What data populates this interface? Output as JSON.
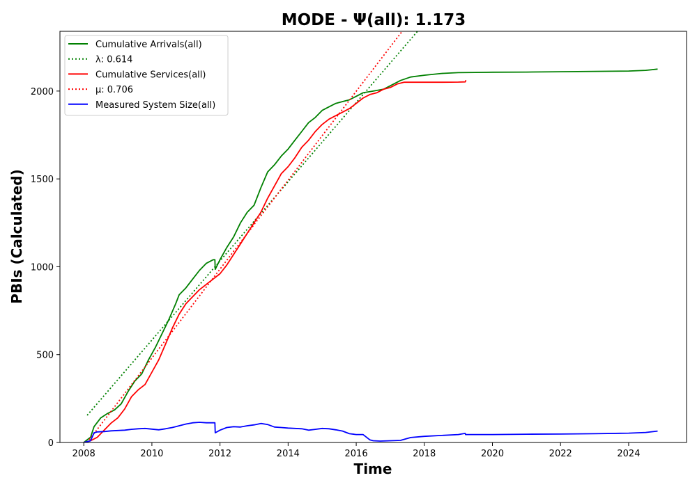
{
  "chart_data": {
    "type": "line",
    "title": "MODE -  Ψ(all): 1.173",
    "xlabel": "Time",
    "ylabel": "PBIs (Calculated)",
    "xlim": [
      2007.3,
      2025.7
    ],
    "ylim": [
      0,
      2340
    ],
    "x_ticks": [
      2008,
      2010,
      2012,
      2014,
      2016,
      2018,
      2020,
      2022,
      2024
    ],
    "x_tick_labels": [
      "2008",
      "2010",
      "2012",
      "2014",
      "2016",
      "2018",
      "2020",
      "2022",
      "2024"
    ],
    "y_ticks": [
      0,
      500,
      1000,
      1500,
      2000
    ],
    "y_tick_labels": [
      "0",
      "500",
      "1000",
      "1500",
      "2000"
    ],
    "grid": false,
    "legend_position": "top-left",
    "series": [
      {
        "name": "Cumulative Arrivals(all)",
        "color": "#008000",
        "style": "solid",
        "x": [
          2008.0,
          2008.2,
          2008.3,
          2008.5,
          2008.7,
          2008.9,
          2009.1,
          2009.3,
          2009.5,
          2009.7,
          2009.9,
          2010.1,
          2010.3,
          2010.5,
          2010.7,
          2010.8,
          2011.0,
          2011.2,
          2011.4,
          2011.6,
          2011.8,
          2011.85,
          2011.86,
          2012.0,
          2012.2,
          2012.4,
          2012.6,
          2012.8,
          2013.0,
          2013.2,
          2013.4,
          2013.6,
          2013.8,
          2014.0,
          2014.2,
          2014.4,
          2014.6,
          2014.8,
          2015.0,
          2015.2,
          2015.4,
          2015.6,
          2015.8,
          2016.0,
          2016.2,
          2016.5,
          2016.8,
          2017.0,
          2017.3,
          2017.6,
          2018.0,
          2018.5,
          2019.0,
          2019.5,
          2020.0,
          2021.0,
          2022.0,
          2023.0,
          2024.0,
          2024.5,
          2024.85
        ],
        "y": [
          0,
          30,
          90,
          140,
          165,
          185,
          220,
          290,
          350,
          390,
          470,
          540,
          620,
          700,
          790,
          840,
          880,
          930,
          980,
          1020,
          1040,
          1040,
          985,
          1040,
          1110,
          1170,
          1250,
          1310,
          1350,
          1450,
          1540,
          1580,
          1630,
          1670,
          1720,
          1770,
          1820,
          1850,
          1890,
          1910,
          1930,
          1940,
          1950,
          1970,
          1990,
          2000,
          2010,
          2030,
          2060,
          2080,
          2090,
          2100,
          2105,
          2106,
          2107,
          2108,
          2110,
          2112,
          2114,
          2118,
          2125
        ]
      },
      {
        "name": "λ: 0.614",
        "color": "#008000",
        "style": "dotted",
        "x": [
          2008.1,
          2017.8
        ],
        "y": [
          155,
          2340
        ]
      },
      {
        "name": "Cumulative Services(all)",
        "color": "#ff0000",
        "style": "solid",
        "x": [
          2008.0,
          2008.2,
          2008.4,
          2008.6,
          2008.8,
          2009.0,
          2009.2,
          2009.4,
          2009.6,
          2009.8,
          2010.0,
          2010.2,
          2010.4,
          2010.6,
          2010.8,
          2011.0,
          2011.2,
          2011.4,
          2011.6,
          2011.8,
          2012.0,
          2012.2,
          2012.4,
          2012.6,
          2012.8,
          2013.0,
          2013.2,
          2013.4,
          2013.6,
          2013.8,
          2014.0,
          2014.2,
          2014.4,
          2014.6,
          2014.8,
          2015.0,
          2015.2,
          2015.4,
          2015.6,
          2015.8,
          2016.0,
          2016.2,
          2016.4,
          2016.6,
          2016.8,
          2017.0,
          2017.2,
          2017.4,
          2018.0,
          2018.5,
          2019.0,
          2019.2,
          2019.21,
          2019.22
        ],
        "y": [
          0,
          10,
          30,
          70,
          110,
          140,
          190,
          260,
          300,
          330,
          400,
          470,
          560,
          650,
          730,
          790,
          830,
          870,
          900,
          930,
          960,
          1010,
          1070,
          1130,
          1190,
          1250,
          1310,
          1390,
          1460,
          1530,
          1570,
          1620,
          1680,
          1720,
          1770,
          1810,
          1840,
          1860,
          1880,
          1900,
          1930,
          1960,
          1980,
          1990,
          2010,
          2020,
          2040,
          2050,
          2050,
          2050,
          2051,
          2052,
          2055,
          2062
        ]
      },
      {
        "name": "μ: 0.706",
        "color": "#ff0000",
        "style": "dotted",
        "x": [
          2008.1,
          2017.35
        ],
        "y": [
          0,
          2340
        ]
      },
      {
        "name": "Measured System Size(all)",
        "color": "#0000ff",
        "style": "solid",
        "x": [
          2008.0,
          2008.2,
          2008.3,
          2008.4,
          2008.6,
          2008.8,
          2009.0,
          2009.2,
          2009.4,
          2009.6,
          2009.8,
          2010.0,
          2010.2,
          2010.4,
          2010.6,
          2010.8,
          2011.0,
          2011.2,
          2011.4,
          2011.6,
          2011.85,
          2011.86,
          2012.0,
          2012.2,
          2012.4,
          2012.6,
          2012.8,
          2013.0,
          2013.2,
          2013.4,
          2013.6,
          2013.8,
          2014.0,
          2014.2,
          2014.4,
          2014.6,
          2014.8,
          2015.0,
          2015.2,
          2015.4,
          2015.6,
          2015.8,
          2016.0,
          2016.2,
          2016.4,
          2016.5,
          2016.7,
          2017.0,
          2017.3,
          2017.6,
          2018.0,
          2018.5,
          2019.0,
          2019.2,
          2019.21,
          2020.0,
          2021.0,
          2022.0,
          2023.0,
          2024.0,
          2024.5,
          2024.85
        ],
        "y": [
          0,
          10,
          55,
          60,
          62,
          66,
          68,
          70,
          75,
          78,
          80,
          76,
          72,
          78,
          85,
          95,
          105,
          112,
          115,
          112,
          112,
          55,
          70,
          85,
          90,
          88,
          95,
          100,
          108,
          102,
          88,
          85,
          82,
          80,
          78,
          70,
          75,
          80,
          78,
          72,
          65,
          50,
          45,
          45,
          15,
          10,
          8,
          10,
          12,
          28,
          35,
          40,
          45,
          52,
          45,
          45,
          47,
          48,
          50,
          53,
          57,
          65
        ]
      }
    ]
  }
}
